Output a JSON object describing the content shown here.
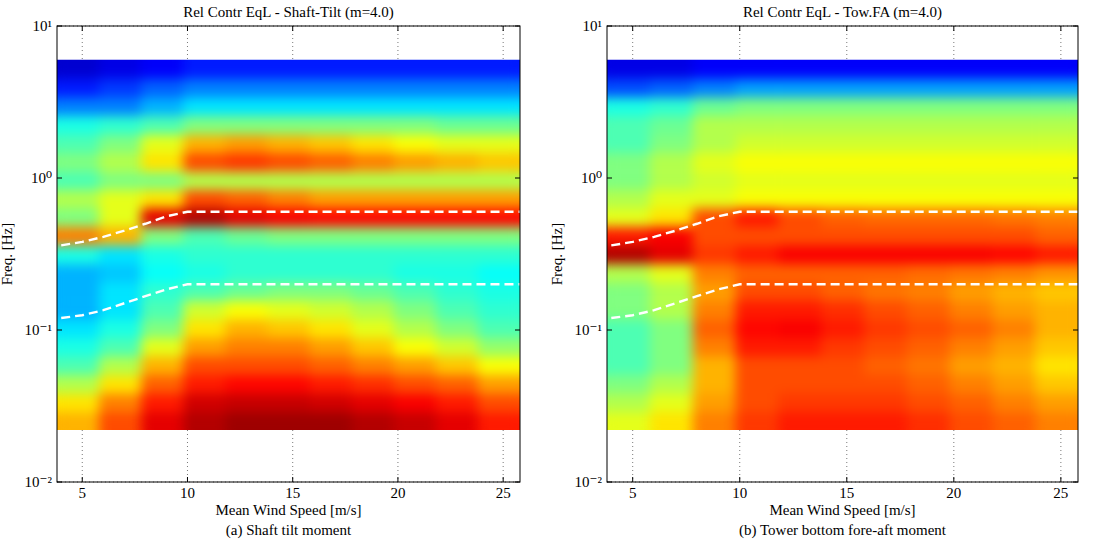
{
  "chart_data": [
    {
      "type": "heatmap",
      "title": "Rel Contr EqL - Shaft-Tilt (m=4.0)",
      "caption": "(a) Shaft tilt moment",
      "x_label": "Mean Wind Speed [m/s]",
      "y_label": "Freq. [Hz]",
      "xlim": [
        3.8,
        25.8
      ],
      "ylim": [
        0.01,
        10
      ],
      "xticks": [
        5,
        10,
        15,
        20,
        25
      ],
      "yticks": [
        {
          "value": 0.01,
          "label": "10⁻²"
        },
        {
          "value": 0.1,
          "label": "10⁻¹"
        },
        {
          "value": 1,
          "label": "10⁰"
        },
        {
          "value": 10,
          "label": "10¹"
        }
      ],
      "log": "y",
      "grid": true,
      "x_edges": [
        3.8,
        5.8,
        7.8,
        9.8,
        11.8,
        13.8,
        15.8,
        17.8,
        19.8,
        21.8,
        23.8,
        25.8
      ],
      "y_edges": [
        0.022,
        0.0291,
        0.0385,
        0.051,
        0.0675,
        0.0893,
        0.118,
        0.157,
        0.207,
        0.274,
        0.363,
        0.481,
        0.637,
        0.842,
        1.11,
        1.48,
        1.95,
        2.59,
        3.42,
        4.53,
        6.0
      ],
      "zlim": [
        0,
        1
      ],
      "cells": [
        [
          0.7,
          0.8,
          0.9,
          0.95,
          0.97,
          0.97,
          0.97,
          0.95,
          0.93,
          0.9,
          0.85
        ],
        [
          0.65,
          0.75,
          0.85,
          0.92,
          0.93,
          0.93,
          0.92,
          0.9,
          0.88,
          0.85,
          0.8
        ],
        [
          0.55,
          0.65,
          0.78,
          0.85,
          0.87,
          0.87,
          0.85,
          0.83,
          0.8,
          0.78,
          0.72
        ],
        [
          0.45,
          0.55,
          0.7,
          0.8,
          0.8,
          0.8,
          0.78,
          0.75,
          0.72,
          0.68,
          0.62
        ],
        [
          0.4,
          0.45,
          0.6,
          0.72,
          0.75,
          0.75,
          0.72,
          0.68,
          0.62,
          0.58,
          0.52
        ],
        [
          0.35,
          0.4,
          0.5,
          0.65,
          0.7,
          0.68,
          0.65,
          0.6,
          0.55,
          0.5,
          0.45
        ],
        [
          0.3,
          0.35,
          0.45,
          0.58,
          0.62,
          0.6,
          0.58,
          0.55,
          0.5,
          0.45,
          0.42
        ],
        [
          0.3,
          0.35,
          0.42,
          0.45,
          0.48,
          0.5,
          0.5,
          0.48,
          0.45,
          0.42,
          0.4
        ],
        [
          0.3,
          0.32,
          0.38,
          0.4,
          0.42,
          0.42,
          0.42,
          0.42,
          0.4,
          0.4,
          0.38
        ],
        [
          0.4,
          0.35,
          0.4,
          0.42,
          0.42,
          0.42,
          0.42,
          0.42,
          0.42,
          0.42,
          0.42
        ],
        [
          0.75,
          0.7,
          0.5,
          0.45,
          0.48,
          0.5,
          0.5,
          0.5,
          0.5,
          0.5,
          0.5
        ],
        [
          0.5,
          0.6,
          0.9,
          0.95,
          0.9,
          0.88,
          0.87,
          0.87,
          0.87,
          0.87,
          0.87
        ],
        [
          0.55,
          0.6,
          0.65,
          0.8,
          0.78,
          0.75,
          0.72,
          0.72,
          0.72,
          0.72,
          0.72
        ],
        [
          0.45,
          0.5,
          0.5,
          0.55,
          0.55,
          0.55,
          0.55,
          0.55,
          0.55,
          0.55,
          0.55
        ],
        [
          0.5,
          0.55,
          0.65,
          0.8,
          0.82,
          0.8,
          0.78,
          0.75,
          0.72,
          0.7,
          0.68
        ],
        [
          0.45,
          0.5,
          0.6,
          0.7,
          0.72,
          0.7,
          0.68,
          0.65,
          0.62,
          0.6,
          0.6
        ],
        [
          0.4,
          0.42,
          0.45,
          0.5,
          0.5,
          0.5,
          0.5,
          0.5,
          0.5,
          0.48,
          0.48
        ],
        [
          0.25,
          0.25,
          0.3,
          0.35,
          0.35,
          0.35,
          0.35,
          0.35,
          0.35,
          0.35,
          0.35
        ],
        [
          0.15,
          0.18,
          0.22,
          0.25,
          0.25,
          0.25,
          0.25,
          0.25,
          0.25,
          0.25,
          0.25
        ],
        [
          0.08,
          0.1,
          0.12,
          0.15,
          0.15,
          0.15,
          0.15,
          0.15,
          0.15,
          0.15,
          0.15
        ]
      ],
      "series": [
        {
          "type": "line",
          "color": "#ffffff",
          "line_style": "dashed",
          "x": [
            4,
            5,
            6,
            7,
            8,
            9,
            10,
            26
          ],
          "values": [
            0.36,
            0.38,
            0.41,
            0.45,
            0.5,
            0.56,
            0.6,
            0.6
          ]
        },
        {
          "type": "line",
          "color": "#ffffff",
          "line_style": "dashed",
          "x": [
            4,
            5,
            6,
            7,
            8,
            9,
            10,
            26
          ],
          "values": [
            0.12,
            0.125,
            0.135,
            0.15,
            0.167,
            0.185,
            0.2,
            0.2
          ]
        }
      ]
    },
    {
      "type": "heatmap",
      "title": "Rel Contr EqL - Tow.FA (m=4.0)",
      "caption": "(b) Tower bottom fore-aft moment",
      "x_label": "Mean Wind Speed [m/s]",
      "y_label": "Freq. [Hz]",
      "xlim": [
        3.8,
        25.8
      ],
      "ylim": [
        0.01,
        10
      ],
      "xticks": [
        5,
        10,
        15,
        20,
        25
      ],
      "yticks": [
        {
          "value": 0.01,
          "label": "10⁻²"
        },
        {
          "value": 0.1,
          "label": "10⁻¹"
        },
        {
          "value": 1,
          "label": "10⁰"
        },
        {
          "value": 10,
          "label": "10¹"
        }
      ],
      "log": "y",
      "grid": true,
      "x_edges": [
        3.8,
        5.8,
        7.8,
        9.8,
        11.8,
        13.8,
        15.8,
        17.8,
        19.8,
        21.8,
        23.8,
        25.8
      ],
      "y_edges": [
        0.022,
        0.0291,
        0.0385,
        0.051,
        0.0675,
        0.0893,
        0.118,
        0.157,
        0.207,
        0.274,
        0.363,
        0.481,
        0.637,
        0.842,
        1.11,
        1.48,
        1.95,
        2.59,
        3.42,
        4.53,
        6.0
      ],
      "zlim": [
        0,
        1
      ],
      "cells": [
        [
          0.6,
          0.65,
          0.75,
          0.82,
          0.85,
          0.85,
          0.85,
          0.83,
          0.8,
          0.78,
          0.75
        ],
        [
          0.55,
          0.6,
          0.72,
          0.8,
          0.82,
          0.82,
          0.82,
          0.8,
          0.78,
          0.75,
          0.72
        ],
        [
          0.5,
          0.55,
          0.7,
          0.8,
          0.8,
          0.8,
          0.8,
          0.78,
          0.75,
          0.72,
          0.68
        ],
        [
          0.45,
          0.5,
          0.7,
          0.8,
          0.8,
          0.8,
          0.78,
          0.76,
          0.72,
          0.7,
          0.65
        ],
        [
          0.45,
          0.5,
          0.75,
          0.85,
          0.85,
          0.82,
          0.8,
          0.78,
          0.75,
          0.72,
          0.68
        ],
        [
          0.45,
          0.5,
          0.78,
          0.87,
          0.88,
          0.85,
          0.82,
          0.8,
          0.78,
          0.75,
          0.7
        ],
        [
          0.5,
          0.55,
          0.75,
          0.85,
          0.85,
          0.83,
          0.8,
          0.78,
          0.75,
          0.72,
          0.7
        ],
        [
          0.5,
          0.55,
          0.72,
          0.8,
          0.8,
          0.78,
          0.76,
          0.75,
          0.72,
          0.7,
          0.68
        ],
        [
          0.55,
          0.6,
          0.75,
          0.78,
          0.78,
          0.78,
          0.78,
          0.77,
          0.76,
          0.75,
          0.73
        ],
        [
          0.95,
          0.9,
          0.82,
          0.85,
          0.88,
          0.88,
          0.88,
          0.88,
          0.88,
          0.87,
          0.85
        ],
        [
          0.85,
          0.88,
          0.8,
          0.8,
          0.8,
          0.8,
          0.8,
          0.8,
          0.8,
          0.8,
          0.78
        ],
        [
          0.6,
          0.65,
          0.8,
          0.85,
          0.8,
          0.78,
          0.77,
          0.77,
          0.77,
          0.76,
          0.75
        ],
        [
          0.55,
          0.6,
          0.6,
          0.62,
          0.62,
          0.62,
          0.62,
          0.62,
          0.62,
          0.62,
          0.62
        ],
        [
          0.5,
          0.55,
          0.58,
          0.6,
          0.6,
          0.6,
          0.6,
          0.6,
          0.6,
          0.6,
          0.6
        ],
        [
          0.5,
          0.55,
          0.6,
          0.62,
          0.62,
          0.62,
          0.62,
          0.62,
          0.62,
          0.62,
          0.62
        ],
        [
          0.45,
          0.5,
          0.55,
          0.58,
          0.58,
          0.58,
          0.58,
          0.58,
          0.58,
          0.58,
          0.58
        ],
        [
          0.45,
          0.48,
          0.55,
          0.55,
          0.55,
          0.55,
          0.55,
          0.55,
          0.55,
          0.55,
          0.55
        ],
        [
          0.4,
          0.42,
          0.48,
          0.5,
          0.5,
          0.5,
          0.5,
          0.5,
          0.5,
          0.5,
          0.5
        ],
        [
          0.2,
          0.22,
          0.25,
          0.28,
          0.28,
          0.28,
          0.28,
          0.28,
          0.28,
          0.28,
          0.28
        ],
        [
          0.1,
          0.1,
          0.12,
          0.12,
          0.12,
          0.12,
          0.12,
          0.12,
          0.12,
          0.12,
          0.12
        ]
      ],
      "series": [
        {
          "type": "line",
          "color": "#ffffff",
          "line_style": "dashed",
          "x": [
            4,
            5,
            6,
            7,
            8,
            9,
            10,
            26
          ],
          "values": [
            0.36,
            0.38,
            0.41,
            0.45,
            0.5,
            0.56,
            0.6,
            0.6
          ]
        },
        {
          "type": "line",
          "color": "#ffffff",
          "line_style": "dashed",
          "x": [
            4,
            5,
            6,
            7,
            8,
            9,
            10,
            26
          ],
          "values": [
            0.12,
            0.125,
            0.135,
            0.15,
            0.167,
            0.185,
            0.2,
            0.2
          ]
        }
      ]
    }
  ]
}
